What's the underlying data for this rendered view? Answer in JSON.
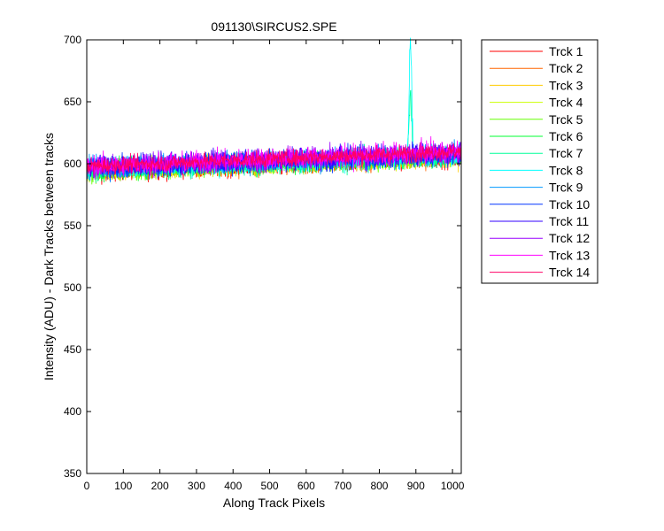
{
  "chart_data": {
    "type": "line",
    "title": "091130\\SIRCUS2.SPE",
    "xlabel": "Along Track Pixels",
    "ylabel": "Intensity (ADU) - Dark Tracks between tracks",
    "xlim": [
      0,
      1024
    ],
    "ylim": [
      350,
      700
    ],
    "xticks": [
      "0",
      "100",
      "200",
      "300",
      "400",
      "500",
      "600",
      "700",
      "800",
      "900",
      "1000"
    ],
    "yticks": [
      "350",
      "400",
      "450",
      "500",
      "550",
      "600",
      "650",
      "700"
    ],
    "grid": false,
    "legend_position": "outside-right",
    "x_range": [
      1,
      1024
    ],
    "series": [
      {
        "name": "Trck 1",
        "color": "#ff0000",
        "baseline_start": 593,
        "baseline_end": 605,
        "noise": 8
      },
      {
        "name": "Trck 2",
        "color": "#ff6600",
        "baseline_start": 593,
        "baseline_end": 605,
        "noise": 8
      },
      {
        "name": "Trck 3",
        "color": "#ffcc00",
        "baseline_start": 594,
        "baseline_end": 605,
        "noise": 8
      },
      {
        "name": "Trck 4",
        "color": "#ccff00",
        "baseline_start": 594,
        "baseline_end": 606,
        "noise": 8
      },
      {
        "name": "Trck 5",
        "color": "#66ff00",
        "baseline_start": 594,
        "baseline_end": 606,
        "noise": 8
      },
      {
        "name": "Trck 6",
        "color": "#00ff33",
        "baseline_start": 595,
        "baseline_end": 606,
        "noise": 8
      },
      {
        "name": "Trck 7",
        "color": "#00ff99",
        "baseline_start": 595,
        "baseline_end": 607,
        "noise": 9,
        "peak": {
          "x": 885,
          "height": 48
        }
      },
      {
        "name": "Trck 8",
        "color": "#00ffff",
        "baseline_start": 596,
        "baseline_end": 607,
        "noise": 9,
        "peak": {
          "x": 885,
          "height": 90
        }
      },
      {
        "name": "Trck 9",
        "color": "#0099ff",
        "baseline_start": 596,
        "baseline_end": 608,
        "noise": 9
      },
      {
        "name": "Trck 10",
        "color": "#0033ff",
        "baseline_start": 597,
        "baseline_end": 608,
        "noise": 9
      },
      {
        "name": "Trck 11",
        "color": "#3300ff",
        "baseline_start": 597,
        "baseline_end": 609,
        "noise": 9
      },
      {
        "name": "Trck 12",
        "color": "#9900ff",
        "baseline_start": 598,
        "baseline_end": 609,
        "noise": 9
      },
      {
        "name": "Trck 13",
        "color": "#ff00ff",
        "baseline_start": 598,
        "baseline_end": 610,
        "noise": 9
      },
      {
        "name": "Trck 14",
        "color": "#ff0066",
        "baseline_start": 598,
        "baseline_end": 610,
        "noise": 7
      }
    ]
  }
}
